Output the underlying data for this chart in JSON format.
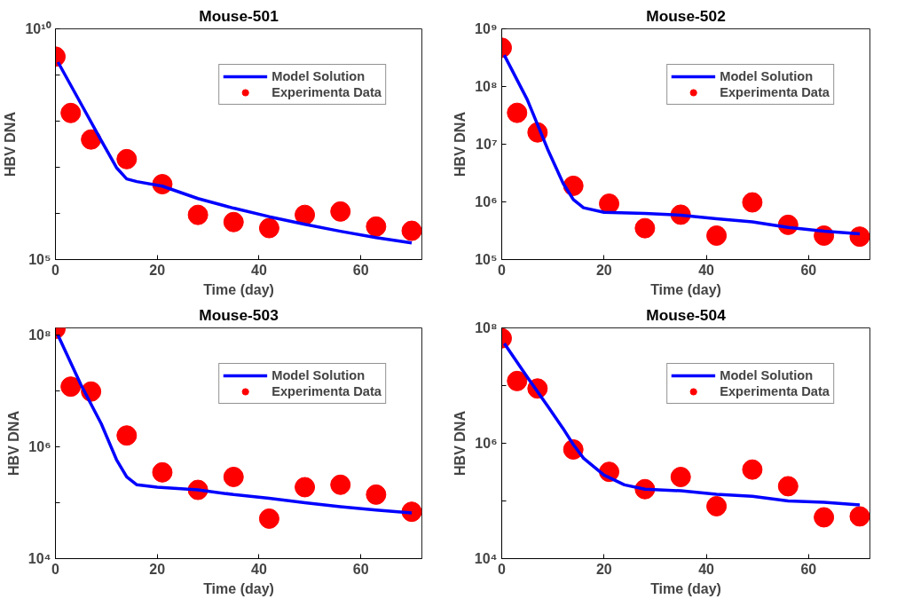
{
  "chart_data": [
    {
      "type": "line",
      "title": "Mouse-501",
      "xlabel": "Time (day)",
      "ylabel": "HBV DNA",
      "log": "y",
      "grid": false,
      "legend": "top right",
      "xlim": [
        0,
        72
      ],
      "xticks": [
        0,
        20,
        40,
        60
      ],
      "ylim": [
        100000,
        10000000000
      ],
      "yticks": [
        {
          "value": 100000,
          "label": "10⁵"
        },
        {
          "value": 1000000,
          "label": null
        },
        {
          "value": 10000000,
          "label": null
        },
        {
          "value": 100000000,
          "label": null
        },
        {
          "value": 1000000000,
          "label": null
        },
        {
          "value": 10000000000,
          "label": "10¹⁰"
        }
      ],
      "series": [
        {
          "name": "Model Solution",
          "color": "#0000ff",
          "marker": "none",
          "line_style": "solid",
          "x": [
            0.5,
            5,
            9,
            12,
            14,
            16,
            21,
            28,
            35,
            42,
            49,
            56,
            63,
            70
          ],
          "values": [
            1900000000.0,
            240000000.0,
            38000000.0,
            9800000.0,
            5600000.0,
            4900000.0,
            3900000.0,
            2100000.0,
            1300000.0,
            850000.0,
            580000.0,
            410000.0,
            300000.0,
            230000.0
          ]
        },
        {
          "name": "Experimenta Data",
          "type": "scatter",
          "color": "#ff0000",
          "marker": "circle",
          "x": [
            0,
            3,
            7,
            14,
            21,
            28,
            35,
            42,
            49,
            56,
            63,
            70
          ],
          "values": [
            2500000000.0,
            150000000.0,
            40000000.0,
            15000000.0,
            4300000.0,
            930000.0,
            650000.0,
            480000.0,
            930000.0,
            1100000.0,
            520000.0,
            420000.0
          ]
        }
      ]
    },
    {
      "type": "line",
      "title": "Mouse-502",
      "xlabel": "Time (day)",
      "ylabel": "HBV DNA",
      "log": "y",
      "grid": false,
      "legend": "top right",
      "xlim": [
        0,
        72
      ],
      "xticks": [
        0,
        20,
        40,
        60
      ],
      "ylim": [
        100000,
        1000000000
      ],
      "yticks": [
        {
          "value": 100000,
          "label": "10⁵"
        },
        {
          "value": 1000000,
          "label": "10⁶"
        },
        {
          "value": 10000000,
          "label": "10⁷"
        },
        {
          "value": 100000000,
          "label": "10⁸"
        },
        {
          "value": 1000000000,
          "label": "10⁹"
        }
      ],
      "series": [
        {
          "name": "Model Solution",
          "color": "#0000ff",
          "marker": "none",
          "line_style": "solid",
          "x": [
            0.5,
            5,
            9,
            12,
            14,
            16,
            20,
            28,
            35,
            42,
            49,
            56,
            63,
            70
          ],
          "values": [
            350000000.0,
            59000000.0,
            8100000.0,
            2100000.0,
            1100000.0,
            790000.0,
            660000.0,
            630000.0,
            590000.0,
            510000.0,
            450000.0,
            360000.0,
            310000.0,
            280000.0
          ]
        },
        {
          "name": "Experimenta Data",
          "type": "scatter",
          "color": "#ff0000",
          "marker": "circle",
          "x": [
            0,
            3,
            7,
            14,
            21,
            28,
            35,
            42,
            49,
            56,
            63,
            70
          ],
          "values": [
            470000000.0,
            35000000.0,
            16000000.0,
            1900000.0,
            930000.0,
            350000.0,
            600000.0,
            260000.0,
            980000.0,
            400000.0,
            260000.0,
            250000.0
          ]
        }
      ]
    },
    {
      "type": "line",
      "title": "Mouse-503",
      "xlabel": "Time (day)",
      "ylabel": "HBV DNA",
      "log": "y",
      "grid": false,
      "legend": "top right",
      "xlim": [
        0,
        72
      ],
      "xticks": [
        0,
        20,
        40,
        60
      ],
      "ylim": [
        10000,
        135000000
      ],
      "yticks": [
        {
          "value": 10000,
          "label": "10⁴"
        },
        {
          "value": 100000,
          "label": null
        },
        {
          "value": 1000000,
          "label": "10⁶"
        },
        {
          "value": 10000000,
          "label": null
        },
        {
          "value": 100000000,
          "label": "10⁸"
        }
      ],
      "series": [
        {
          "name": "Model Solution",
          "color": "#0000ff",
          "marker": "none",
          "line_style": "solid",
          "x": [
            0.5,
            5,
            9,
            12,
            14,
            16,
            20,
            28,
            35,
            42,
            49,
            56,
            63,
            70
          ],
          "values": [
            100000000.0,
            13000000.0,
            2600000.0,
            590000.0,
            290000.0,
            210000.0,
            190000.0,
            170000.0,
            140000.0,
            120000.0,
            100000.0,
            85000.0,
            74000.0,
            66000.0
          ]
        },
        {
          "name": "Experimenta Data",
          "type": "scatter",
          "color": "#ff0000",
          "marker": "circle",
          "x": [
            0,
            3,
            7,
            14,
            21,
            28,
            35,
            42,
            49,
            56,
            63,
            70
          ],
          "values": [
            130000000.0,
            12000000.0,
            9800000.0,
            1600000.0,
            350000.0,
            170000.0,
            290000.0,
            52000.0,
            190000.0,
            210000.0,
            140000.0,
            69000.0
          ]
        }
      ]
    },
    {
      "type": "line",
      "title": "Mouse-504",
      "xlabel": "Time (day)",
      "ylabel": "HBV DNA",
      "log": "y",
      "grid": false,
      "legend": "top right",
      "xlim": [
        0,
        72
      ],
      "xticks": [
        0,
        20,
        40,
        60
      ],
      "ylim": [
        10000,
        100000000
      ],
      "yticks": [
        {
          "value": 10000,
          "label": "10⁴"
        },
        {
          "value": 100000,
          "label": null
        },
        {
          "value": 1000000,
          "label": "10⁶"
        },
        {
          "value": 10000000,
          "label": null
        },
        {
          "value": 100000000,
          "label": "10⁸"
        }
      ],
      "series": [
        {
          "name": "Model Solution",
          "color": "#0000ff",
          "marker": "none",
          "line_style": "solid",
          "x": [
            0.5,
            5,
            9,
            12,
            14,
            16,
            20,
            24,
            28,
            35,
            42,
            49,
            56,
            63,
            70
          ],
          "values": [
            54000000.0,
            14000000.0,
            4400000.0,
            1800000.0,
            950000.0,
            550000.0,
            280000.0,
            190000.0,
            160000.0,
            150000.0,
            130000.0,
            120000.0,
            100000.0,
            95000.0,
            85000.0
          ]
        },
        {
          "name": "Experimenta Data",
          "type": "scatter",
          "color": "#ff0000",
          "marker": "circle",
          "x": [
            0,
            3,
            7,
            14,
            21,
            28,
            35,
            42,
            49,
            56,
            63,
            70
          ],
          "values": [
            66000000.0,
            12000000.0,
            8900000.0,
            780000.0,
            320000.0,
            160000.0,
            260000.0,
            81000.0,
            350000.0,
            180000.0,
            52000.0,
            54000.0
          ]
        }
      ]
    }
  ]
}
